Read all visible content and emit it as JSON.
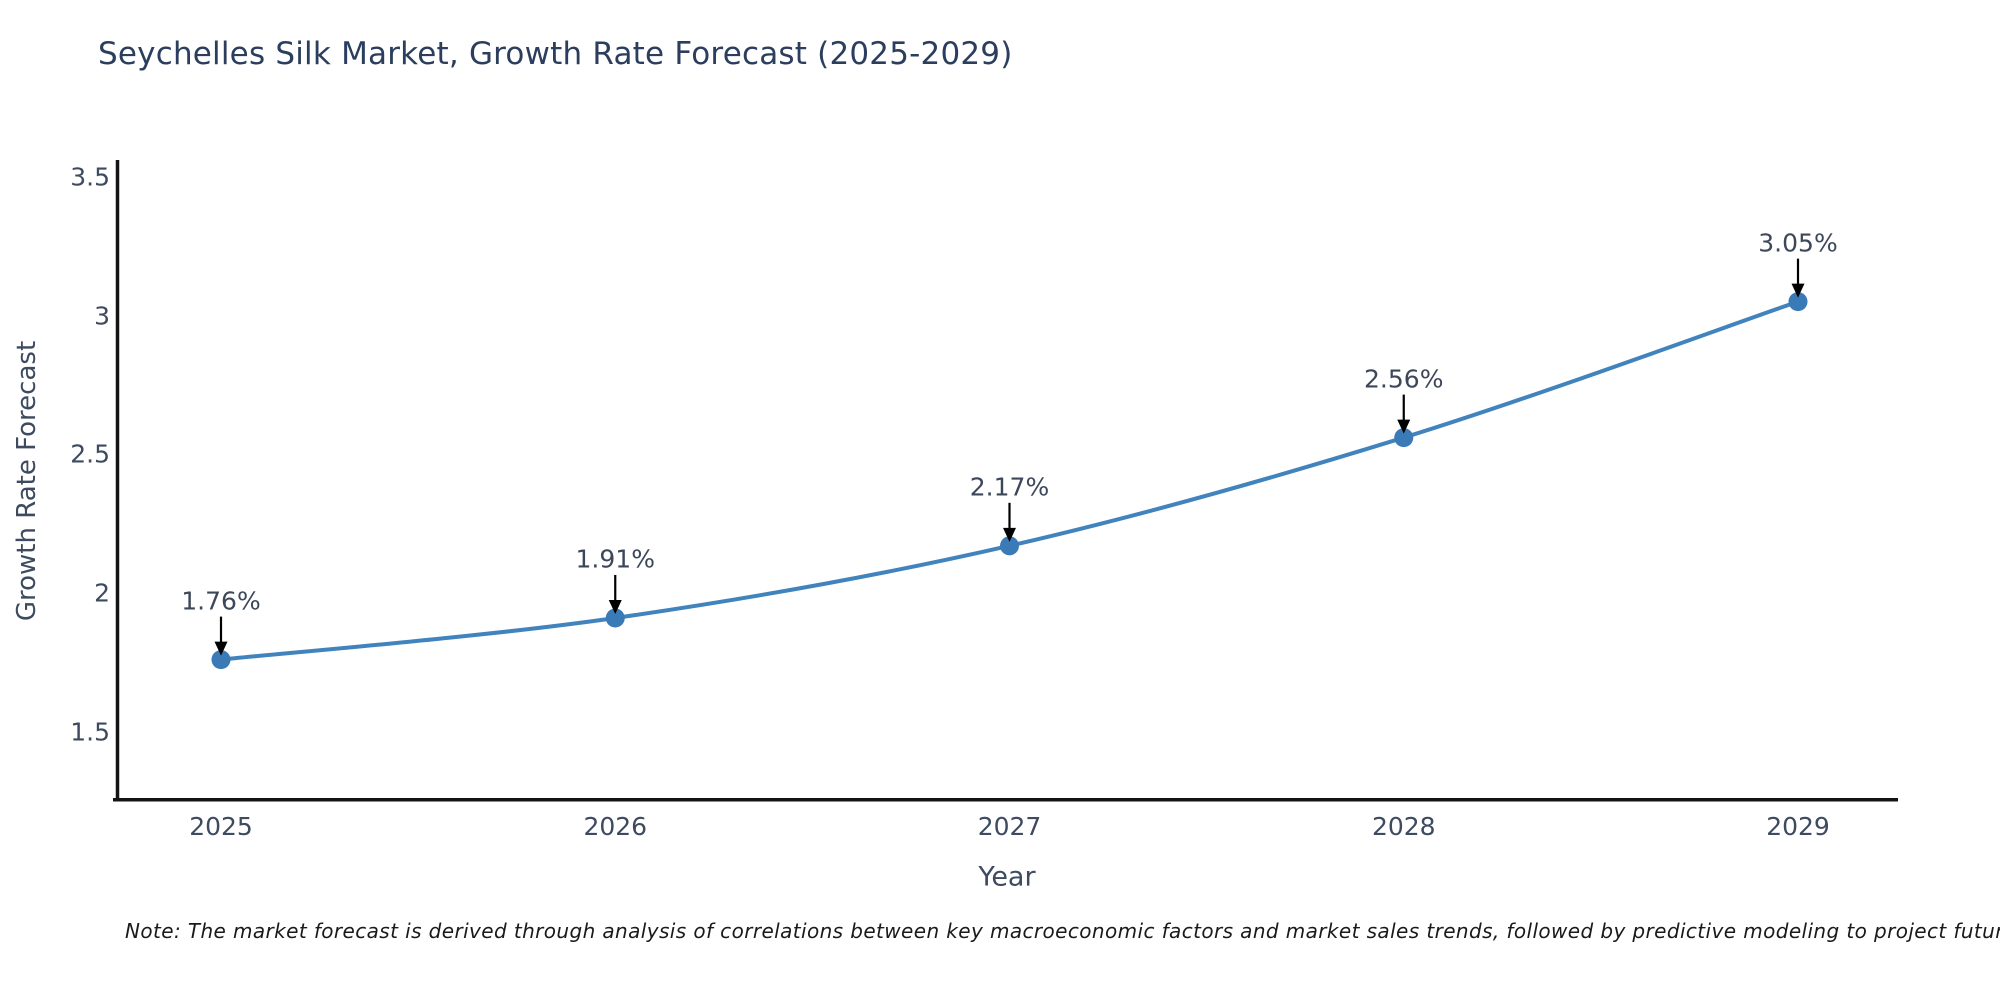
{
  "title": "Seychelles Silk Market, Growth Rate Forecast (2025-2029)",
  "note": "Note: The market forecast is derived through analysis of correlations between key macroeconomic factors and market sales trends, followed by predictive modeling to project future sales",
  "colors": {
    "background": "#ffffff",
    "line": "#4183bd",
    "marker": "#3a7ab7",
    "axis_spine": "#141414",
    "arrow": "#000000",
    "title_text": "#2c3e5d",
    "tick_text": "#3d4a5f",
    "axis_label_text": "#3d4a5f",
    "annotation_text": "#3c475a",
    "note_text": "#1a1a1a"
  },
  "chart_data": {
    "type": "line",
    "title": "Seychelles Silk Market, Growth Rate Forecast (2025-2029)",
    "xlabel": "Year",
    "ylabel": "Growth Rate Forecast",
    "x": [
      2025,
      2026,
      2027,
      2028,
      2029
    ],
    "y": [
      1.76,
      1.91,
      2.17,
      2.56,
      3.05
    ],
    "point_labels": [
      "1.76%",
      "1.91%",
      "2.17%",
      "2.56%",
      "3.05%"
    ],
    "xtick_labels": [
      "2025",
      "2026",
      "2027",
      "2028",
      "2029"
    ],
    "ytick_values": [
      1.5,
      2,
      2.5,
      3,
      3.5
    ],
    "ytick_labels": [
      "1.5",
      "2",
      "2.5",
      "3",
      "3.5"
    ],
    "ylim": [
      1.25,
      3.56
    ],
    "grid": false,
    "legend": false,
    "marker": "circle",
    "annotation_arrows": true,
    "line_shape": "smooth"
  }
}
